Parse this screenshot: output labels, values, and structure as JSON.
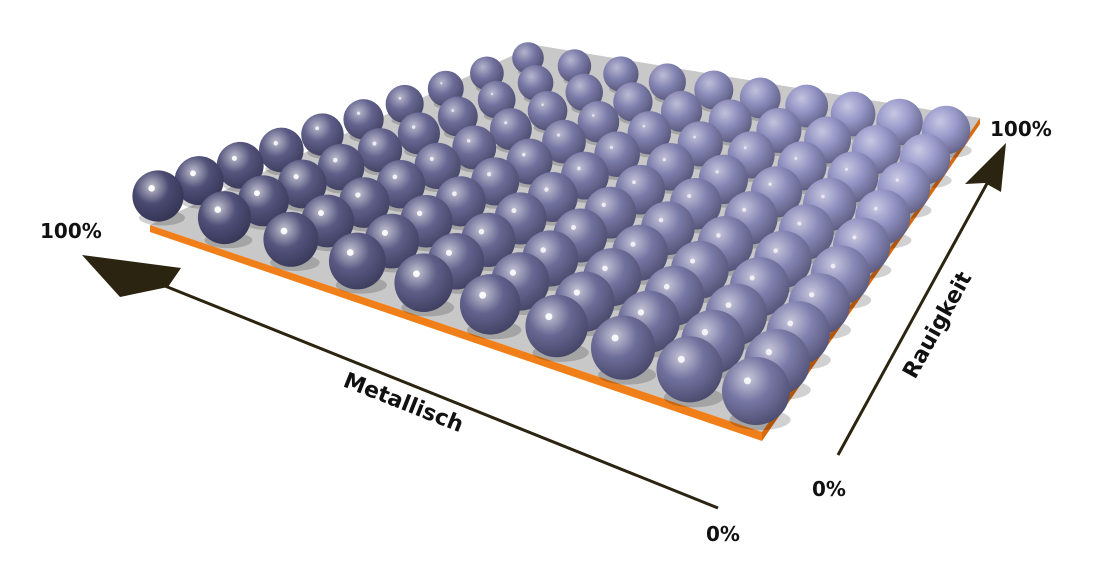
{
  "diagram": {
    "rows": 10,
    "cols": 10,
    "metallic_axis": {
      "label": "Metallisch",
      "start_label": "0%",
      "end_label": "100%"
    },
    "roughness_axis": {
      "label": "Rauigkeit",
      "start_label": "0%",
      "end_label": "100%"
    },
    "colors": {
      "sphere_metal_smooth": "#4a4a72",
      "sphere_dielectric_rough": "#9a9acc",
      "sphere_mid": "#7575a8",
      "base_plate": "#c8c8c8",
      "plate_edge": "#f07f1a",
      "arrow": "#2a2410",
      "background": "#ffffff"
    }
  }
}
